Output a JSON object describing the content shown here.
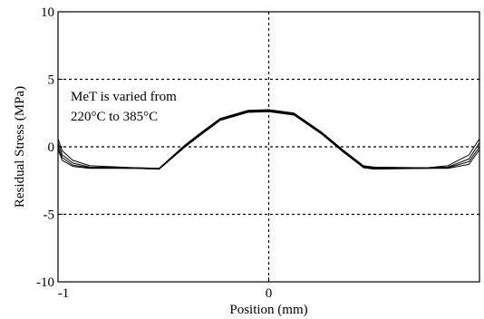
{
  "chart_data": {
    "type": "line",
    "xlabel": "Position (mm)",
    "ylabel": "Residual Stress (MPa)",
    "xlim": [
      -1,
      1
    ],
    "ylim": [
      -10,
      10
    ],
    "x_ticks": [
      {
        "value": -1,
        "label": "-1"
      },
      {
        "value": 0,
        "label": "0"
      }
    ],
    "y_ticks": [
      {
        "value": -10,
        "label": "-10"
      },
      {
        "value": -5,
        "label": "-5"
      },
      {
        "value": 0,
        "label": "0"
      },
      {
        "value": 5,
        "label": "5"
      },
      {
        "value": 10,
        "label": "10"
      }
    ],
    "gridlines": {
      "horizontal": [
        -5,
        0,
        5
      ],
      "vertical": [
        0
      ],
      "style": "dashed"
    },
    "annotation": {
      "lines": [
        "MeT is varied from",
        "220°C to 385°C"
      ]
    },
    "series": [
      {
        "x": [
          -1.0,
          -0.98,
          -0.93,
          -0.85,
          -0.63,
          -0.52,
          -0.4,
          -0.33,
          -0.23,
          -0.1,
          0.0,
          0.12,
          0.25,
          0.35,
          0.45,
          0.5,
          0.75,
          0.85,
          0.95,
          1.0
        ],
        "y": [
          0.6,
          -0.3,
          -1.0,
          -1.4,
          -1.55,
          -1.6,
          0.1,
          0.95,
          2.1,
          2.7,
          2.75,
          2.5,
          1.1,
          -0.2,
          -1.4,
          -1.5,
          -1.55,
          -1.4,
          -0.6,
          0.6
        ]
      },
      {
        "x": [
          -1.0,
          -0.98,
          -0.93,
          -0.85,
          -0.63,
          -0.52,
          -0.4,
          -0.33,
          -0.23,
          -0.1,
          0.0,
          0.12,
          0.25,
          0.35,
          0.45,
          0.5,
          0.75,
          0.85,
          0.95,
          1.0
        ],
        "y": [
          0.3,
          -0.6,
          -1.2,
          -1.5,
          -1.55,
          -1.6,
          0.05,
          0.9,
          2.05,
          2.65,
          2.7,
          2.45,
          1.05,
          -0.25,
          -1.45,
          -1.55,
          -1.55,
          -1.5,
          -0.9,
          0.3
        ]
      },
      {
        "x": [
          -1.0,
          -0.98,
          -0.93,
          -0.85,
          -0.63,
          -0.52,
          -0.4,
          -0.33,
          -0.23,
          -0.1,
          0.0,
          0.12,
          0.25,
          0.35,
          0.45,
          0.5,
          0.75,
          0.85,
          0.95,
          1.0
        ],
        "y": [
          0.0,
          -0.8,
          -1.35,
          -1.55,
          -1.6,
          -1.65,
          0.0,
          0.85,
          2.0,
          2.6,
          2.65,
          2.4,
          1.0,
          -0.3,
          -1.5,
          -1.6,
          -1.6,
          -1.55,
          -1.1,
          0.0
        ]
      },
      {
        "x": [
          -1.0,
          -0.98,
          -0.93,
          -0.85,
          -0.63,
          -0.52,
          -0.4,
          -0.33,
          -0.23,
          -0.1,
          0.0,
          0.12,
          0.25,
          0.35,
          0.45,
          0.5,
          0.75,
          0.85,
          0.95,
          1.0
        ],
        "y": [
          -0.2,
          -1.0,
          -1.45,
          -1.6,
          -1.6,
          -1.65,
          -0.05,
          0.8,
          1.95,
          2.55,
          2.6,
          2.35,
          0.95,
          -0.35,
          -1.55,
          -1.65,
          -1.6,
          -1.6,
          -1.3,
          -0.2
        ]
      }
    ],
    "colors": {
      "line": "#000000",
      "grid": "#000000",
      "background": "#ffffff"
    }
  }
}
